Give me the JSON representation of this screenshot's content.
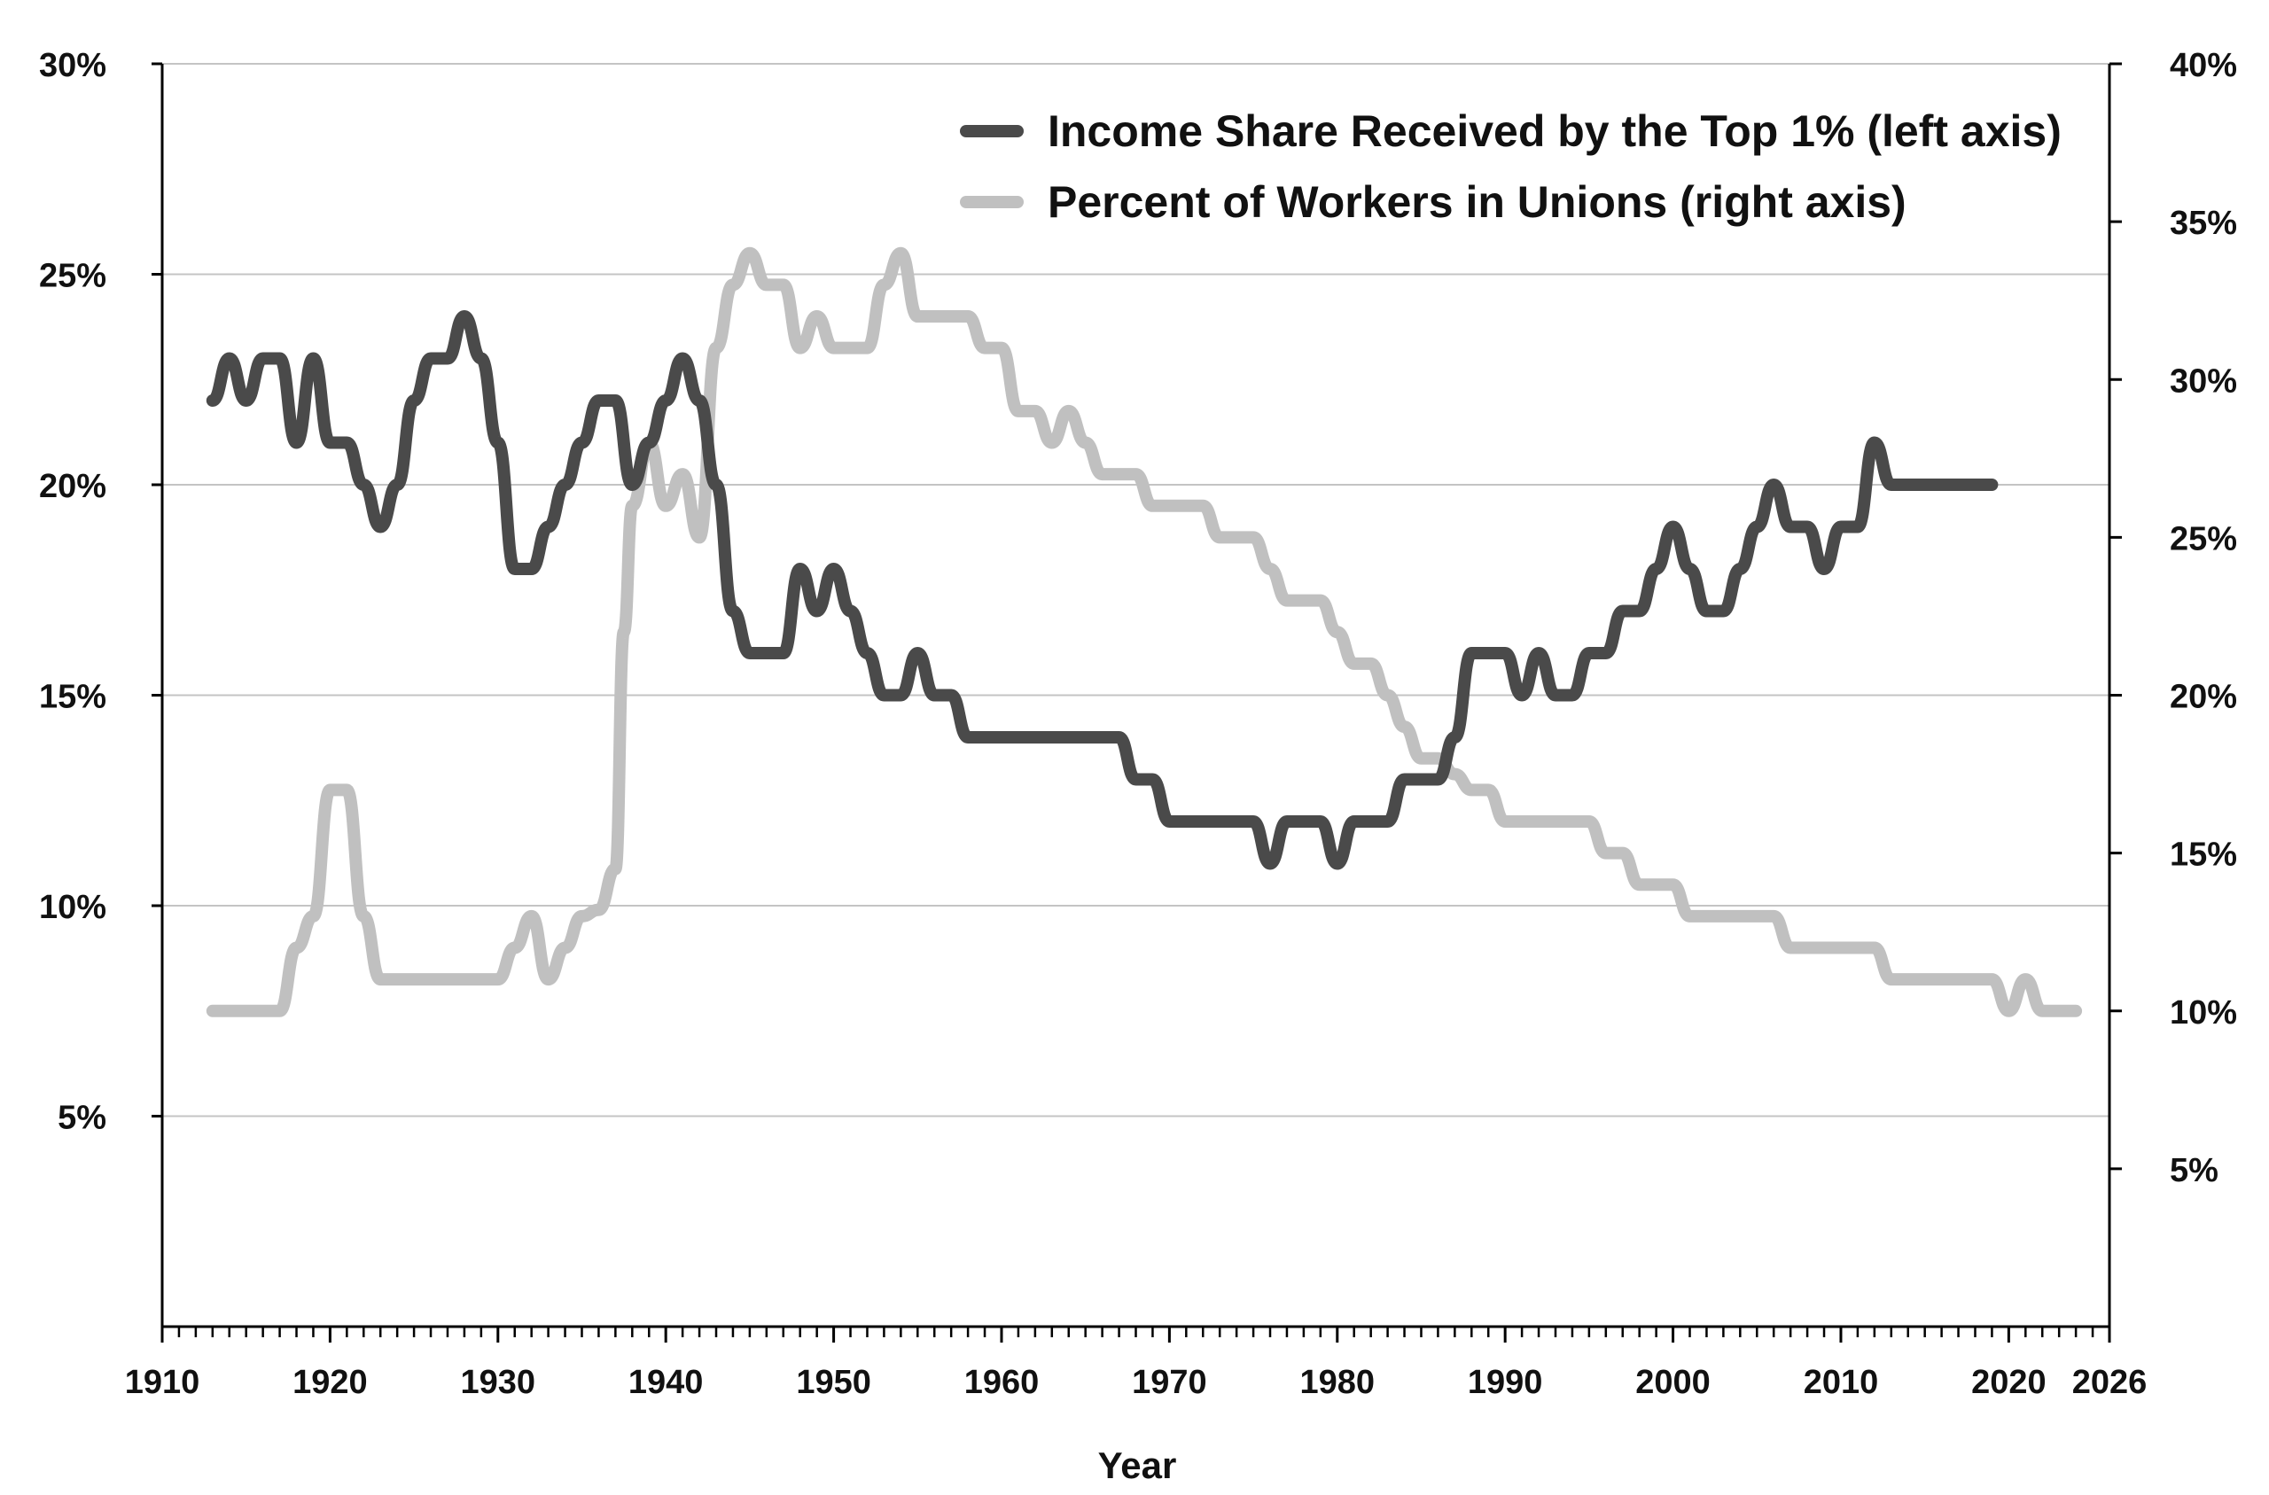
{
  "chart_data": {
    "type": "line",
    "title": "",
    "xlabel": "Year",
    "ylabel_left": "",
    "ylabel_right": "",
    "xlim": [
      1910,
      2026
    ],
    "ylim_left": [
      0,
      30
    ],
    "ylim_right": [
      0,
      40
    ],
    "x_ticks": [
      1910,
      1920,
      1930,
      1940,
      1950,
      1960,
      1970,
      1980,
      1990,
      2000,
      2010,
      2020,
      2026
    ],
    "y_left_ticks": [
      5,
      10,
      15,
      20,
      25,
      30
    ],
    "y_left_tick_labels": [
      "5%",
      "10%",
      "15%",
      "20%",
      "25%",
      "30%"
    ],
    "y_right_ticks": [
      5,
      10,
      15,
      20,
      25,
      30,
      35,
      40
    ],
    "y_right_tick_labels": [
      "5%",
      "10%",
      "15%",
      "20%",
      "25%",
      "30%",
      "35%",
      "40%"
    ],
    "grid": "horizontal",
    "legend_position": "top-right",
    "series": [
      {
        "name": "Income Share Received by the Top 1% (left axis)",
        "axis": "left",
        "color": "#4a4a4a",
        "x": [
          1913,
          1914,
          1915,
          1916,
          1917,
          1918,
          1919,
          1920,
          1921,
          1922,
          1923,
          1924,
          1925,
          1926,
          1927,
          1928,
          1929,
          1930,
          1931,
          1932,
          1933,
          1934,
          1935,
          1936,
          1937,
          1938,
          1939,
          1940,
          1941,
          1942,
          1943,
          1944,
          1945,
          1946,
          1947,
          1948,
          1949,
          1950,
          1951,
          1952,
          1953,
          1954,
          1955,
          1956,
          1957,
          1958,
          1959,
          1960,
          1961,
          1962,
          1963,
          1964,
          1965,
          1966,
          1967,
          1968,
          1969,
          1970,
          1971,
          1972,
          1973,
          1974,
          1975,
          1976,
          1977,
          1978,
          1979,
          1980,
          1981,
          1982,
          1983,
          1984,
          1985,
          1986,
          1987,
          1988,
          1989,
          1990,
          1991,
          1992,
          1993,
          1994,
          1995,
          1996,
          1997,
          1998,
          1999,
          2000,
          2001,
          2002,
          2003,
          2004,
          2005,
          2006,
          2007,
          2008,
          2009,
          2010,
          2011,
          2012,
          2013,
          2014,
          2015,
          2016,
          2017,
          2018,
          2019
        ],
        "y": [
          22,
          23,
          22,
          23,
          23,
          21,
          23,
          21,
          21,
          20,
          19,
          20,
          22,
          23,
          23,
          24,
          23,
          21,
          18,
          18,
          19,
          20,
          21,
          22,
          22,
          20,
          21,
          22,
          23,
          22,
          20,
          17,
          16,
          16,
          16,
          18,
          17,
          18,
          17,
          16,
          15,
          15,
          16,
          15,
          15,
          14,
          14,
          14,
          14,
          14,
          14,
          14,
          14,
          14,
          14,
          13,
          13,
          12,
          12,
          12,
          12,
          12,
          12,
          11,
          12,
          12,
          12,
          11,
          12,
          12,
          12,
          13,
          13,
          13,
          14,
          16,
          16,
          16,
          15,
          16,
          15,
          15,
          16,
          16,
          17,
          17,
          18,
          19,
          18,
          17,
          17,
          18,
          19,
          20,
          19,
          19,
          18,
          19,
          19,
          21,
          20,
          20,
          20,
          20,
          20,
          20,
          20
        ]
      },
      {
        "name": "Percent of Workers in Unions (right axis)",
        "axis": "right",
        "color": "#c0c0c0",
        "x": [
          1913,
          1914,
          1915,
          1916,
          1917,
          1918,
          1919,
          1920,
          1921,
          1922,
          1923,
          1924,
          1925,
          1926,
          1927,
          1928,
          1929,
          1930,
          1931,
          1932,
          1933,
          1934,
          1935,
          1936,
          1937,
          1937.5,
          1938,
          1939,
          1940,
          1941,
          1942,
          1943,
          1944,
          1945,
          1946,
          1947,
          1948,
          1949,
          1950,
          1951,
          1952,
          1953,
          1954,
          1955,
          1956,
          1957,
          1958,
          1959,
          1960,
          1961,
          1962,
          1963,
          1964,
          1965,
          1966,
          1967,
          1968,
          1969,
          1970,
          1971,
          1972,
          1973,
          1974,
          1975,
          1976,
          1977,
          1978,
          1979,
          1980,
          1981,
          1982,
          1983,
          1984,
          1985,
          1986,
          1987,
          1988,
          1989,
          1990,
          1991,
          1992,
          1993,
          1994,
          1995,
          1996,
          1997,
          1998,
          1999,
          2000,
          2001,
          2002,
          2003,
          2004,
          2005,
          2006,
          2007,
          2008,
          2009,
          2010,
          2011,
          2012,
          2013,
          2014,
          2015,
          2016,
          2017,
          2018,
          2019,
          2020,
          2021,
          2022,
          2023,
          2024
        ],
        "y": [
          10,
          10,
          10,
          10,
          10,
          12,
          13,
          17,
          17,
          13,
          11,
          11,
          11,
          11,
          11,
          11,
          11,
          11,
          12,
          13,
          11,
          12,
          13,
          13.2,
          14.5,
          22,
          26,
          28,
          26,
          27,
          25,
          31,
          33,
          34,
          33,
          33,
          31,
          32,
          31,
          31,
          31,
          33,
          34,
          32,
          32,
          32,
          32,
          31,
          31,
          29,
          29,
          28,
          29,
          28,
          27,
          27,
          27,
          26,
          26,
          26,
          26,
          25,
          25,
          25,
          24,
          23,
          23,
          23,
          22,
          21,
          21,
          20,
          19,
          18,
          18,
          17.5,
          17,
          17,
          16,
          16,
          16,
          16,
          16,
          16,
          15,
          15,
          14,
          14,
          14,
          13,
          13,
          13,
          13,
          13,
          13,
          12,
          12,
          12,
          12,
          12,
          12,
          11,
          11,
          11,
          11,
          11,
          11,
          11,
          10,
          11,
          10,
          10,
          10
        ]
      }
    ]
  }
}
